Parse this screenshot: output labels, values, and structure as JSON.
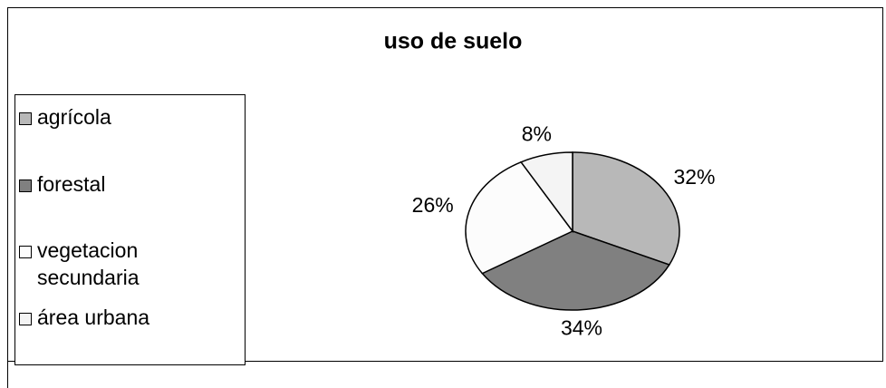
{
  "chart_data": {
    "type": "pie",
    "title": "uso de suelo",
    "categories": [
      "agrícola",
      "forestal",
      "vegetacion secundaria",
      "área urbana"
    ],
    "values": [
      32,
      34,
      26,
      8
    ],
    "value_labels": [
      "32%",
      "34%",
      "26%",
      "8%"
    ],
    "colors": [
      "#b8b8b8",
      "#808080",
      "#fcfcfc",
      "#f4f4f4"
    ],
    "legend": "left"
  }
}
